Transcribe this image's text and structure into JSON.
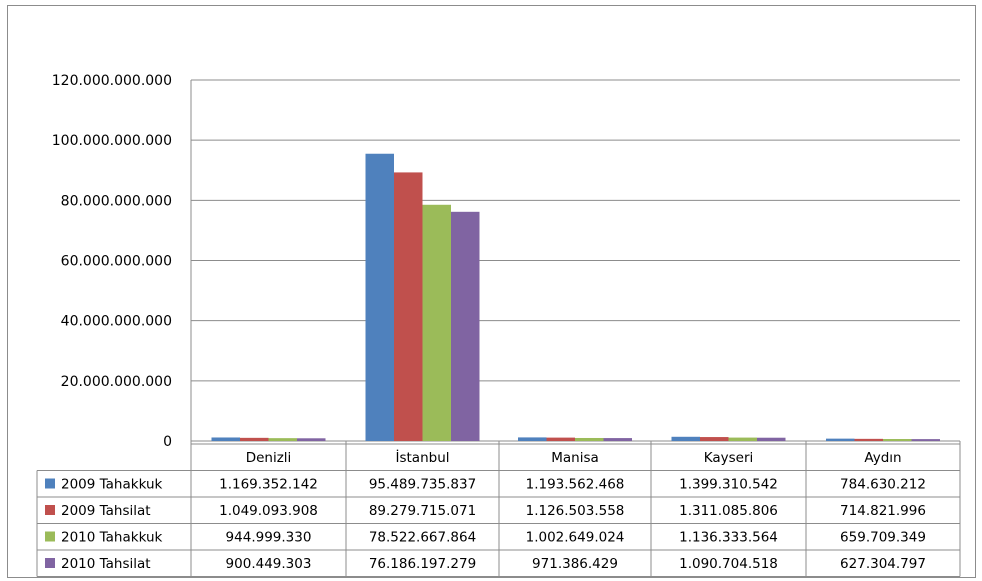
{
  "chart_data": {
    "type": "bar",
    "categories": [
      "Denizli",
      "İstanbul",
      "Manisa",
      "Kayseri",
      "Aydın"
    ],
    "series": [
      {
        "name": "2009 Tahakkuk",
        "color": "#4f81bd",
        "values": [
          1169352142,
          95489735837,
          1193562468,
          1399310542,
          784630212
        ],
        "labels": [
          "1.169.352.142",
          "95.489.735.837",
          "1.193.562.468",
          "1.399.310.542",
          "784.630.212"
        ]
      },
      {
        "name": "2009 Tahsilat",
        "color": "#c0504d",
        "values": [
          1049093908,
          89279715071,
          1126503558,
          1311085806,
          714821996
        ],
        "labels": [
          "1.049.093.908",
          "89.279.715.071",
          "1.126.503.558",
          "1.311.085.806",
          "714.821.996"
        ]
      },
      {
        "name": "2010 Tahakkuk",
        "color": "#9bbb59",
        "values": [
          944999330,
          78522667864,
          1002649024,
          1136333564,
          659709349
        ],
        "labels": [
          "944.999.330",
          "78.522.667.864",
          "1.002.649.024",
          "1.136.333.564",
          "659.709.349"
        ]
      },
      {
        "name": "2010 Tahsilat",
        "color": "#8064a2",
        "values": [
          900449303,
          76186197279,
          971386429,
          1090704518,
          627304797
        ],
        "labels": [
          "900.449.303",
          "76.186.197.279",
          "971.386.429",
          "1.090.704.518",
          "627.304.797"
        ]
      }
    ],
    "ylim": [
      0,
      120000000000
    ],
    "yticks": [
      0,
      20000000000,
      40000000000,
      60000000000,
      80000000000,
      100000000000,
      120000000000
    ],
    "ytick_labels": [
      "0",
      "20.000.000.000",
      "40.000.000.000",
      "60.000.000.000",
      "80.000.000.000",
      "100.000.000.000",
      "120.000.000.000"
    ],
    "grid": true,
    "legend": "data-table",
    "title": "",
    "xlabel": "",
    "ylabel": ""
  }
}
